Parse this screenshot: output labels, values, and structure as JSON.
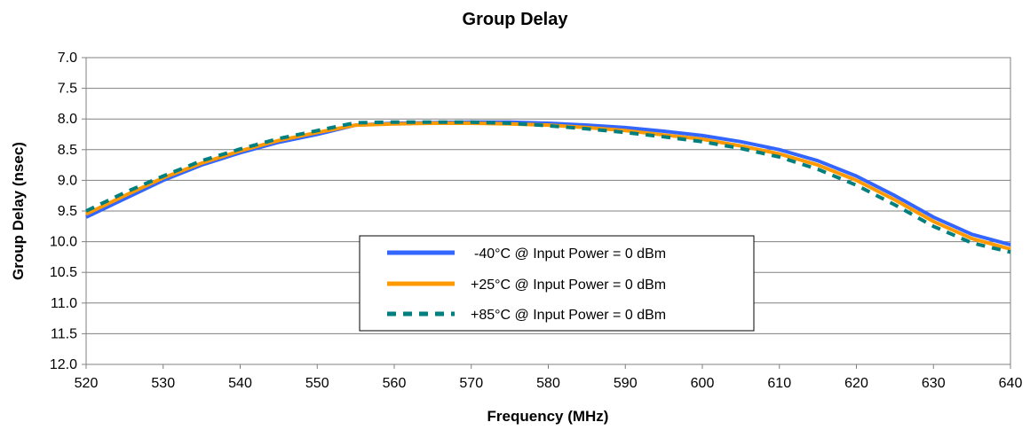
{
  "chart_data": {
    "type": "line",
    "title": "Group Delay",
    "xlabel": "Frequency (MHz)",
    "ylabel": "Group Delay (nsec)",
    "xlim": [
      520,
      640
    ],
    "ylim": [
      7.0,
      12.0
    ],
    "y_inverted": true,
    "xticks": [
      "520",
      "530",
      "540",
      "550",
      "560",
      "570",
      "580",
      "590",
      "600",
      "610",
      "620",
      "630",
      "640"
    ],
    "yticks": [
      "7.0",
      "7.5",
      "8.0",
      "8.5",
      "9.0",
      "9.5",
      "10.0",
      "10.5",
      "11.0",
      "11.5",
      "12.0"
    ],
    "grid": "horizontal",
    "legend_position": "center",
    "series": [
      {
        "name": "-40°C @  Input Power = 0 dBm",
        "color": "#3366ff",
        "style": "solid",
        "x": [
          520,
          525,
          530,
          535,
          540,
          545,
          550,
          555,
          560,
          565,
          570,
          575,
          580,
          585,
          590,
          595,
          600,
          605,
          610,
          615,
          620,
          625,
          630,
          635,
          640
        ],
        "y": [
          9.6,
          9.3,
          9.0,
          8.75,
          8.55,
          8.38,
          8.25,
          8.1,
          8.07,
          8.06,
          8.05,
          8.05,
          8.07,
          8.1,
          8.14,
          8.2,
          8.27,
          8.37,
          8.5,
          8.68,
          8.93,
          9.25,
          9.6,
          9.88,
          10.05
        ]
      },
      {
        "name": "+25°C @  Input Power = 0 dBm",
        "color": "#ff9900",
        "style": "solid",
        "x": [
          520,
          525,
          530,
          535,
          540,
          545,
          550,
          555,
          560,
          565,
          570,
          575,
          580,
          585,
          590,
          595,
          600,
          605,
          610,
          615,
          620,
          625,
          630,
          635,
          640
        ],
        "y": [
          9.55,
          9.25,
          8.96,
          8.72,
          8.52,
          8.35,
          8.22,
          8.1,
          8.08,
          8.07,
          8.07,
          8.08,
          8.1,
          8.14,
          8.19,
          8.26,
          8.33,
          8.44,
          8.57,
          8.75,
          9.0,
          9.32,
          9.67,
          9.95,
          10.12
        ]
      },
      {
        "name": "+85°C @  Input Power = 0 dBm",
        "color": "#007f7f",
        "style": "dashed",
        "x": [
          520,
          525,
          530,
          535,
          540,
          545,
          550,
          555,
          560,
          565,
          570,
          575,
          580,
          585,
          590,
          595,
          600,
          605,
          610,
          615,
          620,
          625,
          630,
          635,
          640
        ],
        "y": [
          9.5,
          9.2,
          8.93,
          8.68,
          8.49,
          8.32,
          8.19,
          8.06,
          8.05,
          8.05,
          8.05,
          8.07,
          8.11,
          8.16,
          8.22,
          8.29,
          8.37,
          8.48,
          8.62,
          8.82,
          9.08,
          9.4,
          9.75,
          10.02,
          10.17
        ]
      }
    ]
  }
}
